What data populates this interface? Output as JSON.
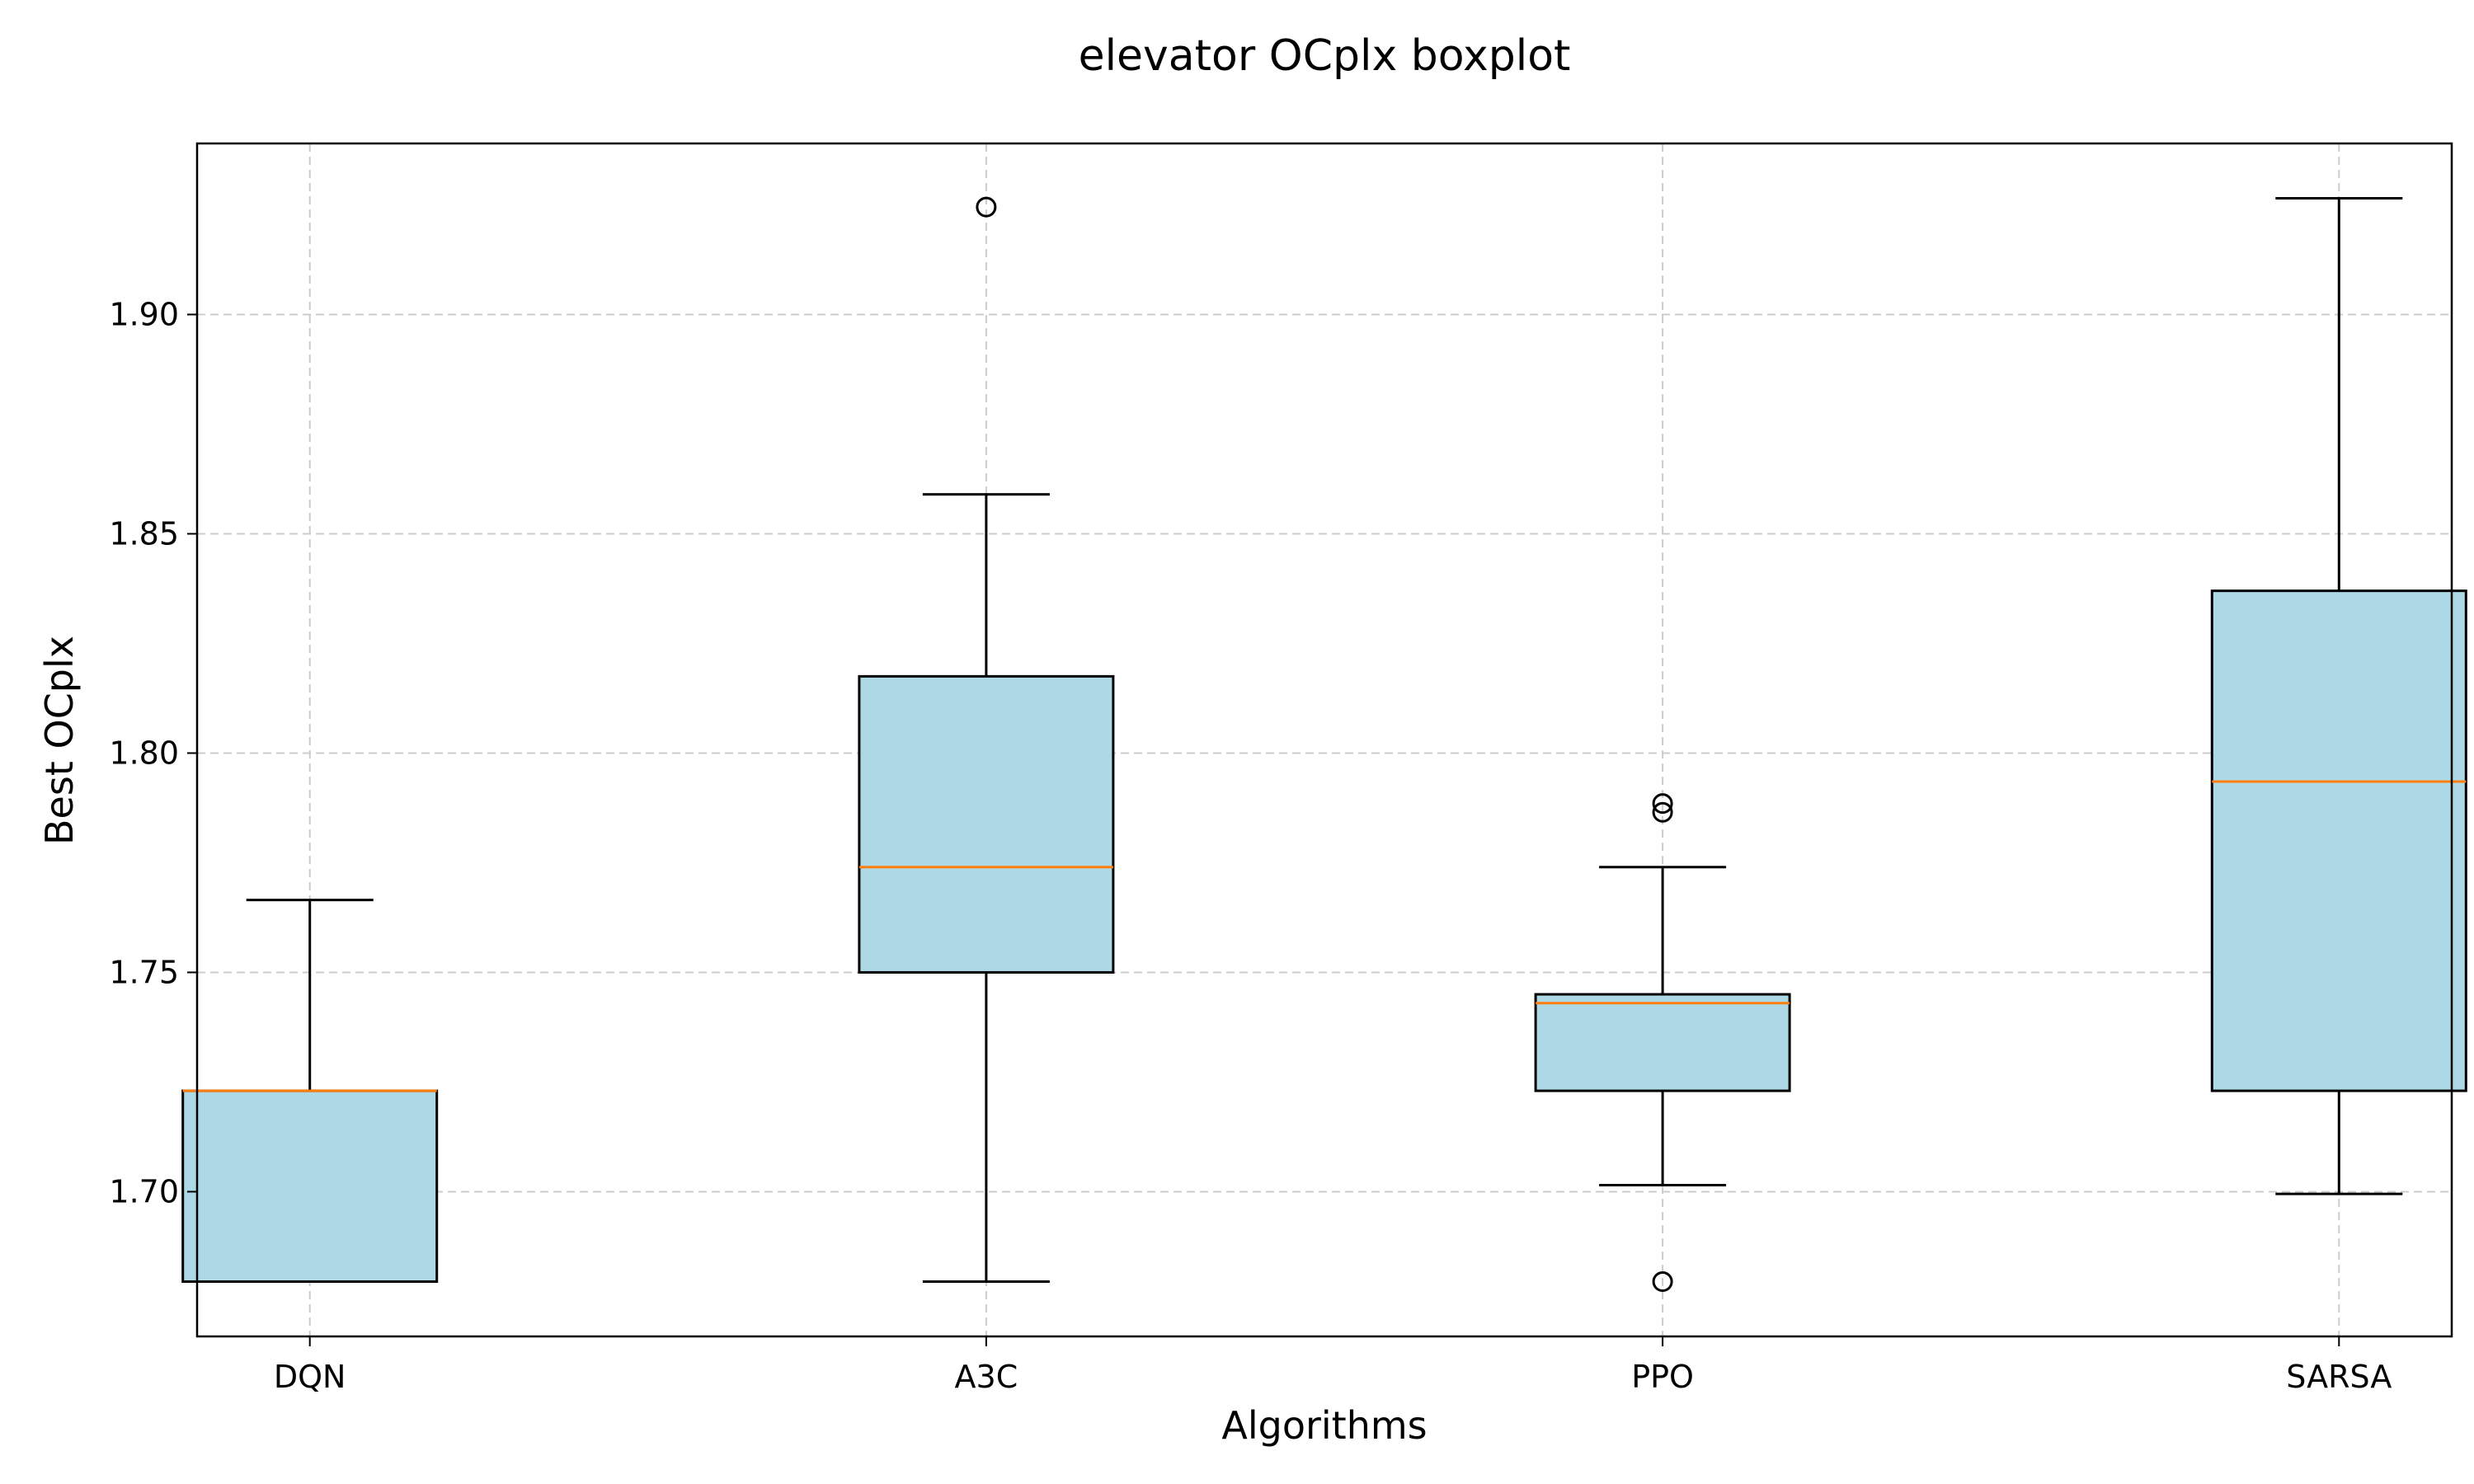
{
  "chart_data": {
    "type": "boxplot",
    "title": "elevator OCplx boxplot",
    "xlabel": "Algorithms",
    "ylabel": "Best OCplx",
    "ylim": [
      1.667,
      1.939
    ],
    "yticks": [
      "1.70",
      "1.75",
      "1.80",
      "1.85",
      "1.90"
    ],
    "grid": true,
    "categories": [
      "DQN",
      "A3C",
      "PPO",
      "SARSA"
    ],
    "boxes": [
      {
        "label": "DQN",
        "whisker_low": 1.6795,
        "q1": 1.6795,
        "median": 1.723,
        "q3": 1.723,
        "whisker_high": 1.7665,
        "outliers": []
      },
      {
        "label": "A3C",
        "whisker_low": 1.6795,
        "q1": 1.75,
        "median": 1.774,
        "q3": 1.8175,
        "whisker_high": 1.859,
        "outliers": [
          1.9245
        ]
      },
      {
        "label": "PPO",
        "whisker_low": 1.7015,
        "q1": 1.723,
        "median": 1.743,
        "q3": 1.745,
        "whisker_high": 1.774,
        "outliers": [
          1.6795,
          1.7865,
          1.7885
        ]
      },
      {
        "label": "SARSA",
        "whisker_low": 1.6995,
        "q1": 1.723,
        "median": 1.7935,
        "q3": 1.837,
        "whisker_high": 1.9265,
        "outliers": []
      }
    ],
    "colors": {
      "box_fill": "#add8e6",
      "box_edge": "#000000",
      "median": "#ff7f0e",
      "grid": "#cccccc"
    }
  }
}
